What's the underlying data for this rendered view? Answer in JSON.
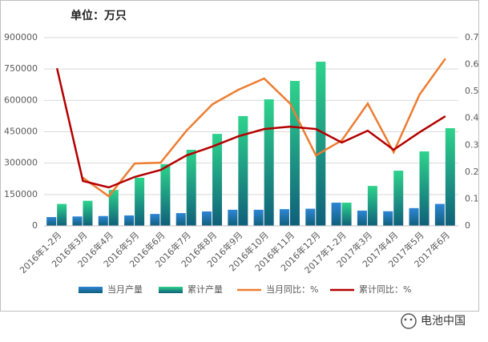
{
  "chart_data": {
    "type": "combo",
    "title": "单位：万只",
    "watermark": "电池中国",
    "categories": [
      "2016年1-2月",
      "2016年3月",
      "2016年4月",
      "2016年5月",
      "2016年6月",
      "2016年7月",
      "2016年8月",
      "2016年9月",
      "2016年10月",
      "2016年11月",
      "2016年12月",
      "2017年1-2月",
      "2017年3月",
      "2017年4月",
      "2017年5月",
      "2017年6月"
    ],
    "series": [
      {
        "name": "当月产量",
        "type": "bar",
        "color": "#2e86d6",
        "values": [
          42000,
          45000,
          47000,
          50000,
          57000,
          61000,
          69000,
          77000,
          77000,
          80000,
          82000,
          111000,
          73000,
          70000,
          85000,
          105000
        ]
      },
      {
        "name": "累计产量",
        "type": "bar",
        "color": "#2ed38c",
        "values": [
          105000,
          120000,
          172000,
          230000,
          295000,
          364000,
          440000,
          525000,
          605000,
          693000,
          785000,
          111000,
          191000,
          264000,
          356000,
          467000
        ]
      },
      {
        "name": "当月同比：%",
        "type": "line",
        "axis": "y2",
        "color": "#ed7d31",
        "values": [
          null,
          0.179,
          0.11,
          0.232,
          0.235,
          0.354,
          0.452,
          0.506,
          0.548,
          0.455,
          0.262,
          0.318,
          0.455,
          0.274,
          0.488,
          0.622
        ]
      },
      {
        "name": "累计同比：%",
        "type": "line",
        "axis": "y2",
        "color": "#b40000",
        "values": [
          0.586,
          0.167,
          0.143,
          0.182,
          0.208,
          0.262,
          0.295,
          0.333,
          0.36,
          0.369,
          0.36,
          0.31,
          0.354,
          0.283,
          0.348,
          0.408
        ]
      }
    ],
    "ylim": [
      0,
      900000
    ],
    "yticks": [
      0,
      150000,
      300000,
      450000,
      600000,
      750000,
      900000
    ],
    "y2lim": [
      0,
      0.7
    ],
    "y2ticks": [
      0,
      0.1,
      0.2,
      0.3,
      0.4,
      0.5,
      0.6,
      0.7
    ],
    "grid": true
  }
}
